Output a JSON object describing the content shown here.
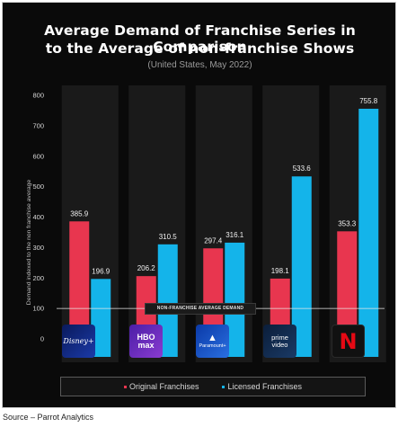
{
  "title_line1": "Average Demand of Franchise Series in Comparison",
  "title_line2": "to the Average of non-franchise Shows",
  "subtitle": "(United States, May 2022)",
  "avg_line_label": "NON-FRANCHISE AVERAGE DEMAND",
  "source": "Source – Parrot Analytics",
  "colors": {
    "original": "#e8364f",
    "licensed": "#14b4ea",
    "background": "#0a0a0a",
    "band": "#1a1a1a"
  },
  "chart_data": {
    "type": "bar",
    "title": "Average Demand of Franchise Series in Comparison to the Average of non-franchise Shows",
    "subtitle": "(United States, May 2022)",
    "ylabel": "Demand indexed to the non franchise average",
    "ylim": [
      0,
      800
    ],
    "yticks": [
      0,
      100,
      200,
      300,
      400,
      500,
      600,
      700,
      800
    ],
    "categories": [
      "Disney+",
      "HBO Max",
      "Paramount+",
      "Prime Video",
      "Netflix"
    ],
    "series": [
      {
        "name": "Original Franchises",
        "values": [
          385.9,
          206.2,
          297.4,
          198.1,
          353.3
        ]
      },
      {
        "name": "Licensed Franchises",
        "values": [
          196.9,
          310.5,
          316.1,
          533.6,
          755.8
        ]
      }
    ],
    "reference_line": {
      "value": 100,
      "label": "NON-FRANCHISE AVERAGE DEMAND"
    },
    "legend_position": "bottom"
  },
  "logos": [
    {
      "icon": "disney-plus-logo",
      "text": "Disney+"
    },
    {
      "icon": "hbo-max-logo",
      "line1": "HBO",
      "line2": "max"
    },
    {
      "icon": "paramount-plus-logo",
      "text": "Paramount+"
    },
    {
      "icon": "prime-video-logo",
      "line1": "prime",
      "line2": "video"
    },
    {
      "icon": "netflix-logo",
      "text": "N"
    }
  ]
}
